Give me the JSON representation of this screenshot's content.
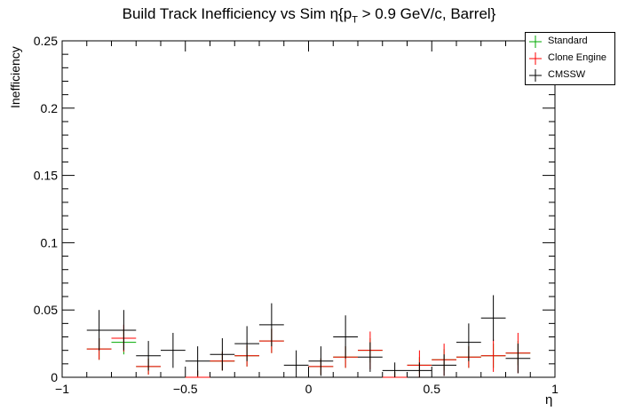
{
  "chart_data": {
    "type": "scatter",
    "title": "Build Track Inefficiency vs Sim η{p",
    "title_sub": "T",
    "title_tail": " > 0.9 GeV/c, Barrel}",
    "xlabel": "η",
    "ylabel": "Inefficiency",
    "xlim": [
      -1.0,
      1.0
    ],
    "ylim": [
      0,
      0.25
    ],
    "x_ticks": [
      -1,
      -0.5,
      0,
      0.5,
      1
    ],
    "x_tick_labels": [
      "−1",
      "−0.5",
      "0",
      "0.5",
      "1"
    ],
    "y_ticks": [
      0,
      0.05,
      0.1,
      0.15,
      0.2,
      0.25
    ],
    "y_tick_labels": [
      "0",
      "0.05",
      "0.1",
      "0.15",
      "0.2",
      "0.25"
    ],
    "grid": false,
    "legend_position": "top-right",
    "bin_half_width": 0.05,
    "series": [
      {
        "name": "Standard",
        "color": "#00aa00",
        "points": [
          {
            "x": -0.85,
            "y": 0.021,
            "err": 0.008
          },
          {
            "x": -0.75,
            "y": 0.026,
            "err": 0.009
          },
          {
            "x": -0.65,
            "y": 0.008,
            "err": 0.006
          },
          {
            "x": -0.45,
            "y": 0.0,
            "err": 0.005
          },
          {
            "x": -0.35,
            "y": 0.012,
            "err": 0.007
          },
          {
            "x": -0.25,
            "y": 0.016,
            "err": 0.008
          },
          {
            "x": -0.15,
            "y": 0.027,
            "err": 0.009
          },
          {
            "x": 0.05,
            "y": 0.008,
            "err": 0.006
          },
          {
            "x": 0.15,
            "y": 0.015,
            "err": 0.008
          },
          {
            "x": 0.25,
            "y": 0.02,
            "err": 0.009
          },
          {
            "x": 0.35,
            "y": 0.0,
            "err": 0.004
          },
          {
            "x": 0.45,
            "y": 0.009,
            "err": 0.006
          },
          {
            "x": 0.55,
            "y": 0.013,
            "err": 0.008
          },
          {
            "x": 0.65,
            "y": 0.015,
            "err": 0.008
          },
          {
            "x": 0.75,
            "y": 0.016,
            "err": 0.009
          },
          {
            "x": 0.85,
            "y": 0.018,
            "err": 0.009
          }
        ]
      },
      {
        "name": "Clone Engine",
        "color": "#ff0000",
        "points": [
          {
            "x": -0.85,
            "y": 0.021,
            "err": 0.008
          },
          {
            "x": -0.75,
            "y": 0.029,
            "err": 0.01
          },
          {
            "x": -0.65,
            "y": 0.008,
            "err": 0.006
          },
          {
            "x": -0.45,
            "y": 0.0,
            "err": 0.005
          },
          {
            "x": -0.35,
            "y": 0.012,
            "err": 0.007
          },
          {
            "x": -0.25,
            "y": 0.016,
            "err": 0.008
          },
          {
            "x": -0.15,
            "y": 0.027,
            "err": 0.009
          },
          {
            "x": 0.05,
            "y": 0.008,
            "err": 0.006
          },
          {
            "x": 0.15,
            "y": 0.015,
            "err": 0.008
          },
          {
            "x": 0.25,
            "y": 0.02,
            "err": 0.014
          },
          {
            "x": 0.35,
            "y": 0.0,
            "err": 0.004
          },
          {
            "x": 0.45,
            "y": 0.009,
            "err": 0.011
          },
          {
            "x": 0.55,
            "y": 0.013,
            "err": 0.012
          },
          {
            "x": 0.65,
            "y": 0.015,
            "err": 0.008
          },
          {
            "x": 0.75,
            "y": 0.016,
            "err": 0.012
          },
          {
            "x": 0.85,
            "y": 0.018,
            "err": 0.015
          }
        ]
      },
      {
        "name": "CMSSW",
        "color": "#000000",
        "points": [
          {
            "x": -0.85,
            "y": 0.035,
            "err": 0.015
          },
          {
            "x": -0.75,
            "y": 0.035,
            "err": 0.015
          },
          {
            "x": -0.65,
            "y": 0.016,
            "err": 0.011
          },
          {
            "x": -0.55,
            "y": 0.02,
            "err": 0.013
          },
          {
            "x": -0.45,
            "y": 0.012,
            "err": 0.011
          },
          {
            "x": -0.35,
            "y": 0.017,
            "err": 0.012
          },
          {
            "x": -0.25,
            "y": 0.025,
            "err": 0.013
          },
          {
            "x": -0.15,
            "y": 0.039,
            "err": 0.016
          },
          {
            "x": -0.05,
            "y": 0.009,
            "err": 0.011
          },
          {
            "x": 0.05,
            "y": 0.012,
            "err": 0.011
          },
          {
            "x": 0.15,
            "y": 0.03,
            "err": 0.016
          },
          {
            "x": 0.25,
            "y": 0.015,
            "err": 0.011
          },
          {
            "x": 0.35,
            "y": 0.005,
            "err": 0.006
          },
          {
            "x": 0.45,
            "y": 0.005,
            "err": 0.006
          },
          {
            "x": 0.55,
            "y": 0.009,
            "err": 0.008
          },
          {
            "x": 0.65,
            "y": 0.026,
            "err": 0.014
          },
          {
            "x": 0.75,
            "y": 0.044,
            "err": 0.017
          },
          {
            "x": 0.85,
            "y": 0.014,
            "err": 0.011
          }
        ]
      }
    ]
  }
}
